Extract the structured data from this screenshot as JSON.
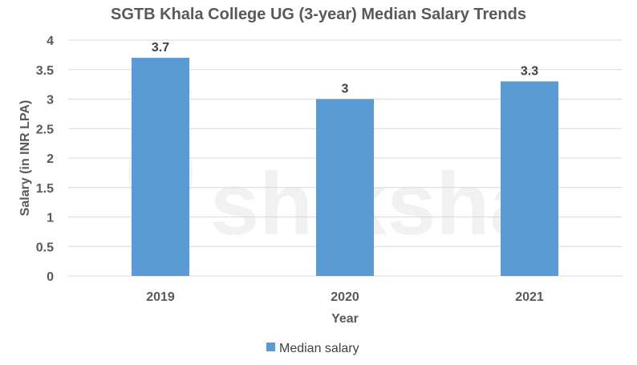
{
  "chart_data": {
    "type": "bar",
    "title": "SGTB Khala College UG (3-year) Median Salary Trends",
    "xlabel": "Year",
    "ylabel": "Salary (in INR LPA)",
    "categories": [
      "2019",
      "2020",
      "2021"
    ],
    "series": [
      {
        "name": "Median salary",
        "values": [
          3.7,
          3,
          3.3
        ],
        "color": "#5b9bd5"
      }
    ],
    "data_labels": [
      "3.7",
      "3",
      "3.3"
    ],
    "ylim": [
      0,
      4
    ],
    "yticks": [
      "0",
      "0.5",
      "1",
      "1.5",
      "2",
      "2.5",
      "3",
      "3.5",
      "4"
    ],
    "grid": true,
    "legend_position": "bottom"
  },
  "watermark": {
    "text": "shiksha",
    "icon": "shiksha-logo-icon"
  }
}
